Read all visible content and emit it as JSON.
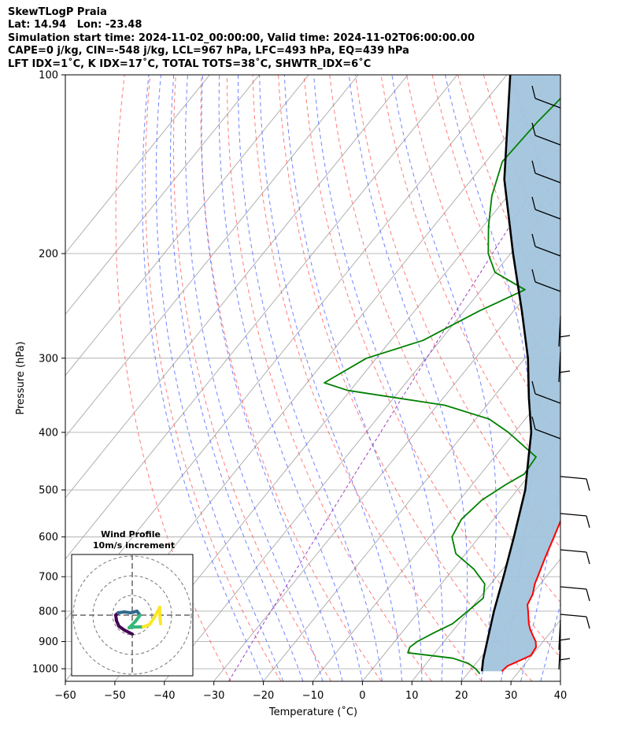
{
  "header": {
    "line1": "SkewTLogP Praia",
    "line2": "Lat: 14.94   Lon: -23.48",
    "line3": "Simulation start time: 2024-11-02_00:00:00, Valid time: 2024-11-02T06:00:00.00",
    "line4": "CAPE=0 j/kg, CIN=-548 j/kg, LCL=967 hPa, LFC=493 hPa, EQ=439 hPa",
    "line5": "LFT IDX=1˚C, K IDX=17˚C, TOTAL TOTS=38˚C, SHWTR_IDX=6˚C"
  },
  "chart_data": {
    "type": "line",
    "title": "SkewTLogP Praia",
    "xlabel": "Temperature (˚C)",
    "ylabel": "Pressure (hPa)",
    "xlim": [
      -60,
      40
    ],
    "ylim": [
      1050,
      100
    ],
    "y_scale": "log",
    "grid": true,
    "x_ticks": [
      "−60",
      "−50",
      "−40",
      "−30",
      "−20",
      "−10",
      "0",
      "10",
      "20",
      "30",
      "40"
    ],
    "x_tick_values": [
      -60,
      -50,
      -40,
      -30,
      -20,
      -10,
      0,
      10,
      20,
      30,
      40
    ],
    "y_ticks": [
      100,
      200,
      300,
      400,
      500,
      600,
      700,
      800,
      900,
      1000
    ],
    "series": [
      {
        "color": "#ff0000",
        "points": [
          [
            1010,
            26.5
          ],
          [
            990,
            26.8
          ],
          [
            970,
            28.3
          ],
          [
            950,
            29.8
          ],
          [
            920,
            29.5
          ],
          [
            900,
            28.5
          ],
          [
            880,
            27.0
          ],
          [
            860,
            25.5
          ],
          [
            840,
            24.2
          ],
          [
            800,
            22.0
          ],
          [
            780,
            20.8
          ],
          [
            750,
            20.2
          ],
          [
            720,
            18.9
          ],
          [
            700,
            18.3
          ],
          [
            650,
            16.7
          ],
          [
            600,
            15.1
          ],
          [
            550,
            13.3
          ],
          [
            520,
            11.8
          ],
          [
            480,
            9.6
          ],
          [
            440,
            8.0
          ],
          [
            400,
            7.7
          ],
          [
            380,
            7.2
          ],
          [
            350,
            4.5
          ],
          [
            330,
            2.2
          ],
          [
            300,
            -0.5
          ],
          [
            280,
            -2.7
          ],
          [
            260,
            -5.6
          ],
          [
            240,
            -8.9
          ],
          [
            220,
            -12.7
          ],
          [
            200,
            -16.0
          ],
          [
            180,
            -19.4
          ],
          [
            160,
            -23.3
          ],
          [
            140,
            -27.2
          ],
          [
            125,
            -28.5
          ],
          [
            115,
            -32.6
          ],
          [
            100,
            -37.7
          ]
        ]
      },
      {
        "color": "#008000",
        "points": [
          [
            1020,
            22.5
          ],
          [
            1000,
            20.8
          ],
          [
            980,
            18.5
          ],
          [
            960,
            14.5
          ],
          [
            940,
            4.5
          ],
          [
            920,
            4.0
          ],
          [
            900,
            4.6
          ],
          [
            870,
            6.5
          ],
          [
            840,
            8.8
          ],
          [
            800,
            9.8
          ],
          [
            760,
            10.8
          ],
          [
            720,
            8.8
          ],
          [
            680,
            4.2
          ],
          [
            640,
            -2.0
          ],
          [
            600,
            -5.5
          ],
          [
            560,
            -6.5
          ],
          [
            520,
            -5.5
          ],
          [
            490,
            -3.2
          ],
          [
            470,
            -1.2
          ],
          [
            440,
            -1.6
          ],
          [
            400,
            -11.2
          ],
          [
            380,
            -17.2
          ],
          [
            360,
            -28.5
          ],
          [
            340,
            -50.5
          ],
          [
            330,
            -56.5
          ],
          [
            300,
            -52.0
          ],
          [
            280,
            -43.5
          ],
          [
            250,
            -37.0
          ],
          [
            230,
            -31.2
          ],
          [
            215,
            -40.1
          ],
          [
            200,
            -44.5
          ],
          [
            180,
            -48.9
          ],
          [
            160,
            -53.2
          ],
          [
            140,
            -56.7
          ],
          [
            120,
            -56.1
          ],
          [
            110,
            -55.3
          ],
          [
            100,
            -55.3
          ]
        ]
      },
      {
        "color": "#000000",
        "points": [
          [
            1010,
            22.5
          ],
          [
            967,
            20.9
          ],
          [
            900,
            18.7
          ],
          [
            800,
            15.1
          ],
          [
            700,
            11.4
          ],
          [
            600,
            7.0
          ],
          [
            500,
            1.6
          ],
          [
            439,
            -3.2
          ],
          [
            400,
            -6.6
          ],
          [
            350,
            -12.7
          ],
          [
            300,
            -19.4
          ],
          [
            250,
            -28.3
          ],
          [
            200,
            -39.5
          ],
          [
            150,
            -53.4
          ],
          [
            100,
            -69.3
          ]
        ]
      }
    ],
    "shaded_region": {
      "color": "#a2c4dd",
      "between": [
        "red-temperature",
        "black-parcel"
      ]
    },
    "wind_profile_inset": {
      "title": "Wind Profile",
      "subtitle": "10m/s increment",
      "rings": [
        10,
        20,
        30
      ],
      "colormap": [
        "#440154",
        "#31688e",
        "#35b779",
        "#fde725"
      ]
    }
  }
}
